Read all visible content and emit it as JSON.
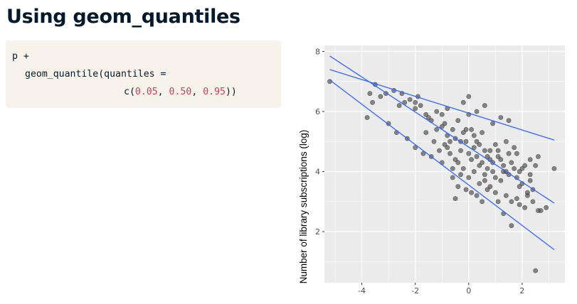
{
  "slide": {
    "title": "Using geom_quantiles"
  },
  "code": {
    "line1": "p +",
    "line2": "geom_quantile(quantiles =",
    "line3_prefix": "c(",
    "q1": "0.05",
    "sep1": ", ",
    "q2": "0.50",
    "sep2": ", ",
    "q3": "0.95",
    "line3_suffix": "))"
  },
  "colors": {
    "panel_background": "#ebebeb",
    "gridline": "#ffffff",
    "point": "#4d4d4d",
    "quantile_line": "#3366ff",
    "code_background": "#f7f3eb",
    "code_number": "#d6375a",
    "title": "#05192d"
  },
  "chart_data": {
    "type": "scatter",
    "xlabel": "",
    "ylabel": "Number of library subscriptions (log)",
    "xlim": [
      -5.4,
      3.6
    ],
    "ylim": [
      0.3,
      8.2
    ],
    "x_ticks": [
      -4,
      -2,
      0,
      2
    ],
    "x_tick_labels": [
      "-4",
      "-2",
      "0",
      "2"
    ],
    "y_ticks": [
      2,
      4,
      6,
      8
    ],
    "y_tick_labels": [
      "2",
      "4",
      "6",
      "8"
    ],
    "grid": true,
    "quantile_lines": [
      {
        "quantile": 0.95,
        "x": [
          -5.2,
          3.2
        ],
        "y": [
          7.4,
          5.05
        ]
      },
      {
        "quantile": 0.5,
        "x": [
          -5.2,
          3.2
        ],
        "y": [
          7.85,
          2.95
        ]
      },
      {
        "quantile": 0.05,
        "x": [
          -5.2,
          3.2
        ],
        "y": [
          7.05,
          1.4
        ]
      }
    ],
    "points": [
      [
        -5.2,
        7.0
      ],
      [
        -3.7,
        6.6
      ],
      [
        -3.5,
        6.9
      ],
      [
        -3.3,
        6.5
      ],
      [
        -3.6,
        6.3
      ],
      [
        -3.1,
        6.6
      ],
      [
        -2.8,
        6.7
      ],
      [
        -2.6,
        6.2
      ],
      [
        -2.4,
        6.3
      ],
      [
        -2.2,
        6.4
      ],
      [
        -2.0,
        6.3
      ],
      [
        -2.0,
        6.1
      ],
      [
        -1.8,
        6.2
      ],
      [
        -1.6,
        5.9
      ],
      [
        -1.4,
        5.7
      ],
      [
        -1.2,
        6.0
      ],
      [
        -1.0,
        5.5
      ],
      [
        -0.9,
        5.6
      ],
      [
        -0.8,
        5.2
      ],
      [
        -0.6,
        5.4
      ],
      [
        -0.5,
        5.1
      ],
      [
        -0.4,
        5.7
      ],
      [
        -0.3,
        5.0
      ],
      [
        -0.2,
        5.3
      ],
      [
        -0.1,
        5.4
      ],
      [
        0.0,
        6.5
      ],
      [
        0.0,
        5.9
      ],
      [
        0.1,
        5.4
      ],
      [
        0.2,
        5.2
      ],
      [
        0.3,
        5.0
      ],
      [
        0.4,
        4.9
      ],
      [
        0.5,
        5.3
      ],
      [
        0.6,
        4.7
      ],
      [
        0.7,
        4.5
      ],
      [
        0.8,
        4.4
      ],
      [
        0.9,
        4.3
      ],
      [
        1.0,
        4.9
      ],
      [
        1.1,
        4.7
      ],
      [
        1.2,
        4.4
      ],
      [
        1.3,
        4.2
      ],
      [
        1.4,
        4.0
      ],
      [
        1.5,
        3.9
      ],
      [
        1.6,
        4.3
      ],
      [
        1.7,
        4.1
      ],
      [
        1.8,
        3.8
      ],
      [
        1.9,
        4.0
      ],
      [
        2.0,
        3.6
      ],
      [
        2.1,
        4.2
      ],
      [
        2.2,
        3.2
      ],
      [
        2.3,
        3.9
      ],
      [
        2.4,
        3.4
      ],
      [
        2.6,
        2.7
      ],
      [
        2.9,
        2.8
      ],
      [
        3.2,
        4.1
      ],
      [
        -0.4,
        4.3
      ],
      [
        -0.2,
        4.1
      ],
      [
        0.0,
        3.8
      ],
      [
        0.2,
        4.0
      ],
      [
        0.4,
        3.6
      ],
      [
        0.6,
        3.9
      ],
      [
        0.8,
        3.5
      ],
      [
        1.0,
        3.3
      ],
      [
        1.2,
        3.7
      ],
      [
        1.4,
        3.2
      ],
      [
        1.6,
        3.0
      ],
      [
        1.8,
        3.1
      ],
      [
        -1.6,
        5.3
      ],
      [
        -1.3,
        5.0
      ],
      [
        -1.1,
        4.7
      ],
      [
        -0.9,
        4.9
      ],
      [
        -0.7,
        4.6
      ],
      [
        -0.5,
        4.4
      ],
      [
        -3.8,
        5.8
      ],
      [
        -3.0,
        5.6
      ],
      [
        -2.7,
        5.3
      ],
      [
        -2.3,
        5.1
      ],
      [
        -2.0,
        4.8
      ],
      [
        -1.7,
        4.6
      ],
      [
        -0.6,
        3.8
      ],
      [
        -0.4,
        3.5
      ],
      [
        -0.1,
        3.4
      ],
      [
        0.3,
        3.2
      ],
      [
        0.5,
        3.0
      ],
      [
        0.7,
        3.4
      ],
      [
        -0.5,
        3.1
      ],
      [
        0.1,
        3.3
      ],
      [
        1.3,
        2.6
      ],
      [
        1.6,
        2.2
      ],
      [
        1.9,
        2.9
      ],
      [
        2.5,
        0.7
      ],
      [
        2.1,
        2.8
      ],
      [
        1.5,
        4.6
      ],
      [
        2.3,
        4.4
      ],
      [
        2.6,
        4.5
      ],
      [
        0.9,
        5.6
      ],
      [
        1.2,
        5.8
      ],
      [
        1.5,
        5.7
      ],
      [
        0.6,
        6.2
      ],
      [
        0.3,
        6.0
      ],
      [
        -0.2,
        6.3
      ],
      [
        -0.8,
        6.1
      ],
      [
        -1.9,
        6.5
      ],
      [
        -2.5,
        6.6
      ],
      [
        -1.0,
        5.9
      ],
      [
        0.0,
        4.6
      ],
      [
        0.4,
        4.2
      ],
      [
        0.9,
        4.0
      ],
      [
        1.1,
        4.5
      ],
      [
        1.7,
        4.8
      ],
      [
        2.0,
        4.1
      ],
      [
        2.3,
        3.7
      ],
      [
        2.5,
        4.2
      ],
      [
        0.2,
        4.8
      ],
      [
        0.5,
        4.3
      ],
      [
        -0.3,
        4.7
      ],
      [
        -0.7,
        5.0
      ],
      [
        -1.2,
        5.4
      ],
      [
        -1.5,
        5.8
      ],
      [
        -0.1,
        5.0
      ],
      [
        0.8,
        4.7
      ],
      [
        1.4,
        5.0
      ],
      [
        1.8,
        4.6
      ],
      [
        2.2,
        3.3
      ],
      [
        2.4,
        3.0
      ],
      [
        2.7,
        2.7
      ],
      [
        1.0,
        3.8
      ],
      [
        0.6,
        3.7
      ],
      [
        0.1,
        4.4
      ],
      [
        -0.3,
        3.9
      ],
      [
        -0.6,
        4.1
      ],
      [
        -1.0,
        4.3
      ],
      [
        -1.4,
        4.5
      ],
      [
        1.3,
        4.0
      ],
      [
        0.7,
        4.1
      ],
      [
        0.3,
        4.5
      ],
      [
        -0.8,
        4.8
      ],
      [
        1.9,
        3.5
      ],
      [
        1.1,
        3.0
      ]
    ]
  }
}
